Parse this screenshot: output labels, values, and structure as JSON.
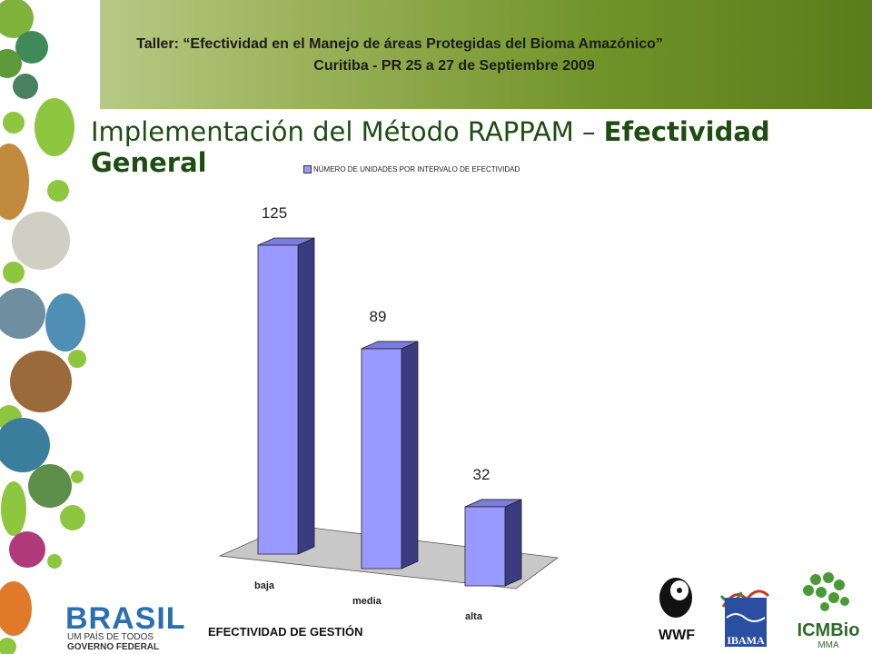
{
  "header": {
    "line1": "Taller: “Efectividad en el Manejo de áreas Protegidas del  Bioma Amazónico”",
    "line2": "Curitiba - PR 25 a 27 de Septiembre 2009"
  },
  "title": {
    "regular": "Implementación del Método RAPPAM – ",
    "bold": "Efectividad General"
  },
  "chart_data": {
    "type": "bar",
    "legend": "NÚMERO DE UNIDADES POR INTERVALO DE EFECTIVIDAD",
    "legend_position": "top",
    "categories": [
      "baja",
      "media",
      "alta"
    ],
    "values": [
      125,
      89,
      32
    ],
    "ylim": [
      0,
      125
    ],
    "grid": false,
    "bar_color": "#9999ff",
    "title": "",
    "xlabel": "",
    "ylabel": ""
  },
  "footer": {
    "text": "EFECTIVIDAD DE GESTIÓN"
  },
  "logos": {
    "brasil": {
      "word": "BRASIL",
      "tagline": "UM PAÍS DE TODOS",
      "subtitle": "GOVERNO FEDERAL"
    },
    "wwf": {
      "text": "WWF"
    },
    "ibama": {
      "text": "IBAMA"
    },
    "icmbio": {
      "text": "ICMBio",
      "sub": "MMA"
    }
  },
  "colors": {
    "header_dark": "#5a7d1c",
    "title": "#1e4d12",
    "bar": "#9999ff"
  }
}
